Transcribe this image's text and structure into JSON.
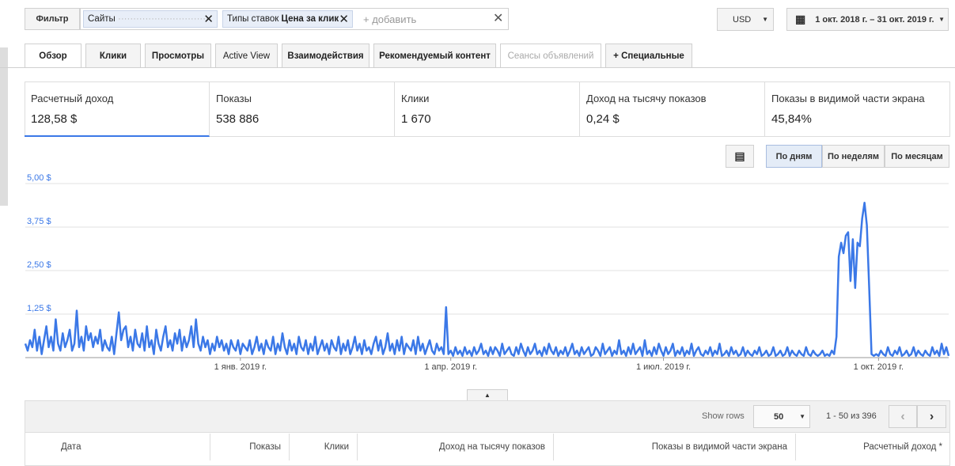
{
  "filter": {
    "button": "Фильтр",
    "chips": [
      {
        "label": "Сайты"
      },
      {
        "label": "Типы ставок",
        "value": "Цена за клик"
      }
    ],
    "add": "+ добавить"
  },
  "currency": "USD",
  "date_range": "1 окт. 2018 г. – 31 окт. 2019 г.",
  "tabs": [
    "Обзор",
    "Клики",
    "Просмотры",
    "Active View",
    "Взаимодействия",
    "Рекомендуемый контент",
    "Сеансы объявлений",
    "Специальные"
  ],
  "metrics": [
    {
      "label": "Расчетный доход",
      "value": "128,58 $"
    },
    {
      "label": "Показы",
      "value": "538 886"
    },
    {
      "label": "Клики",
      "value": "1 670"
    },
    {
      "label": "Доход на тысячу показов",
      "value": "0,24 $"
    },
    {
      "label": "Показы в видимой части экрана",
      "value": "45,84%"
    }
  ],
  "periods": [
    "По дням",
    "По неделям",
    "По месяцам"
  ],
  "chart_data": {
    "type": "line",
    "xlim": [
      0,
      395
    ],
    "ylim": [
      0,
      5
    ],
    "xticks": [
      {
        "value": 92,
        "label": "1 янв. 2019 г."
      },
      {
        "value": 182,
        "label": "1 апр. 2019 г."
      },
      {
        "value": 273,
        "label": "1 июл. 2019 г."
      },
      {
        "value": 365,
        "label": "1 окт. 2019 г."
      }
    ],
    "yticks": [
      {
        "value": 1.25,
        "label": "1,25 $"
      },
      {
        "value": 2.5,
        "label": "2,50 $"
      },
      {
        "value": 3.75,
        "label": "3,75 $"
      },
      {
        "value": 5,
        "label": "5,00 $"
      }
    ],
    "grid": true,
    "series": [
      {
        "color": "#3b78e7",
        "values": [
          0.4,
          0.2,
          0.5,
          0.3,
          0.8,
          0.2,
          0.6,
          0.1,
          0.5,
          0.9,
          0.3,
          0.6,
          0.2,
          1.1,
          0.4,
          0.2,
          0.7,
          0.3,
          0.5,
          0.8,
          0.2,
          0.4,
          1.35,
          0.3,
          0.6,
          0.2,
          0.9,
          0.5,
          0.7,
          0.3,
          0.6,
          0.4,
          0.8,
          0.2,
          0.5,
          0.3,
          0.2,
          0.6,
          0.1,
          0.7,
          1.3,
          0.5,
          0.8,
          0.9,
          0.3,
          0.6,
          0.2,
          0.8,
          0.4,
          0.3,
          0.7,
          0.2,
          0.9,
          0.3,
          0.5,
          0.1,
          0.8,
          0.4,
          0.2,
          0.6,
          0.9,
          0.3,
          0.5,
          0.2,
          0.7,
          0.4,
          0.8,
          0.2,
          0.6,
          0.3,
          0.5,
          0.9,
          0.3,
          1.1,
          0.4,
          0.2,
          0.6,
          0.3,
          0.5,
          0.1,
          0.4,
          0.2,
          0.6,
          0.3,
          0.5,
          0.2,
          0.4,
          0.1,
          0.5,
          0.3,
          0.2,
          0.5,
          0.1,
          0.4,
          0.3,
          0.2,
          0.5,
          0.1,
          0.3,
          0.6,
          0.2,
          0.4,
          0.1,
          0.5,
          0.3,
          0.2,
          0.6,
          0.1,
          0.4,
          0.2,
          0.7,
          0.3,
          0.1,
          0.5,
          0.2,
          0.4,
          0.1,
          0.6,
          0.3,
          0.2,
          0.5,
          0.1,
          0.4,
          0.2,
          0.6,
          0.1,
          0.3,
          0.5,
          0.2,
          0.4,
          0.1,
          0.5,
          0.3,
          0.2,
          0.6,
          0.1,
          0.4,
          0.2,
          0.5,
          0.1,
          0.3,
          0.6,
          0.2,
          0.4,
          0.1,
          0.5,
          0.2,
          0.3,
          0.1,
          0.4,
          0.6,
          0.2,
          0.5,
          0.1,
          0.3,
          0.7,
          0.2,
          0.4,
          0.1,
          0.5,
          0.2,
          0.6,
          0.1,
          0.4,
          0.3,
          0.2,
          0.5,
          0.1,
          0.6,
          0.2,
          0.4,
          0.1,
          0.3,
          0.5,
          0.2,
          0.1,
          0.4,
          0.2,
          0.3,
          0.1,
          1.45,
          0.1,
          0.2,
          0.05,
          0.3,
          0.1,
          0.2,
          0.05,
          0.3,
          0.1,
          0.2,
          0.05,
          0.3,
          0.1,
          0.2,
          0.4,
          0.1,
          0.2,
          0.05,
          0.3,
          0.1,
          0.3,
          0.2,
          0.05,
          0.4,
          0.1,
          0.2,
          0.3,
          0.1,
          0.05,
          0.3,
          0.1,
          0.4,
          0.2,
          0.05,
          0.3,
          0.1,
          0.2,
          0.4,
          0.1,
          0.2,
          0.05,
          0.3,
          0.1,
          0.4,
          0.2,
          0.1,
          0.3,
          0.05,
          0.2,
          0.1,
          0.3,
          0.05,
          0.2,
          0.4,
          0.1,
          0.2,
          0.05,
          0.3,
          0.1,
          0.2,
          0.3,
          0.05,
          0.1,
          0.3,
          0.2,
          0.05,
          0.4,
          0.1,
          0.2,
          0.3,
          0.05,
          0.2,
          0.1,
          0.5,
          0.1,
          0.2,
          0.05,
          0.3,
          0.1,
          0.4,
          0.1,
          0.2,
          0.3,
          0.05,
          0.5,
          0.1,
          0.2,
          0.05,
          0.3,
          0.1,
          0.4,
          0.2,
          0.05,
          0.3,
          0.1,
          0.2,
          0.4,
          0.05,
          0.2,
          0.1,
          0.3,
          0.05,
          0.2,
          0.1,
          0.4,
          0.05,
          0.2,
          0.3,
          0.1,
          0.05,
          0.2,
          0.1,
          0.3,
          0.05,
          0.2,
          0.1,
          0.4,
          0.05,
          0.1,
          0.2,
          0.05,
          0.3,
          0.1,
          0.2,
          0.05,
          0.1,
          0.3,
          0.05,
          0.2,
          0.1,
          0.05,
          0.2,
          0.1,
          0.3,
          0.05,
          0.1,
          0.2,
          0.05,
          0.1,
          0.3,
          0.05,
          0.1,
          0.2,
          0.05,
          0.1,
          0.3,
          0.05,
          0.2,
          0.1,
          0.05,
          0.2,
          0.1,
          0.05,
          0.3,
          0.1,
          0.05,
          0.2,
          0.1,
          0.05,
          0.1,
          0.2,
          0.05,
          0.1,
          0.05,
          0.2,
          0.1,
          0.6,
          2.9,
          3.3,
          3.0,
          3.5,
          3.6,
          2.2,
          3.4,
          2.0,
          3.3,
          3.2,
          4.0,
          4.45,
          3.8,
          2.0,
          0.1,
          0.05,
          0.1,
          0.05,
          0.2,
          0.1,
          0.05,
          0.3,
          0.1,
          0.05,
          0.2,
          0.1,
          0.3,
          0.05,
          0.1,
          0.2,
          0.05,
          0.1,
          0.3,
          0.05,
          0.2,
          0.1,
          0.05,
          0.2,
          0.1,
          0.05,
          0.3,
          0.1,
          0.2,
          0.05,
          0.4,
          0.1,
          0.3,
          0.05
        ]
      }
    ]
  },
  "table": {
    "show_rows_label": "Show rows",
    "rows_per_page": "50",
    "range": "1 - 50 из 396",
    "columns": [
      "Дата",
      "Показы",
      "Клики",
      "Доход на тысячу показов",
      "Показы в видимой части экрана",
      "Расчетный доход *"
    ]
  }
}
